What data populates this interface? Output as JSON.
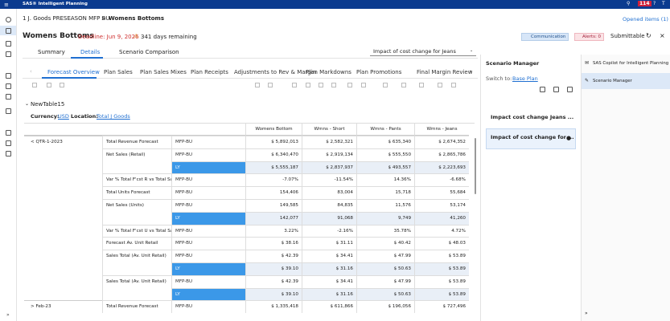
{
  "app": {
    "title": "SAS® Intelligent Planning",
    "notification_count": "114"
  },
  "breadcrumb": {
    "parent": "1 J. Goods PRESEASON MFP BU",
    "current": "Womens Bottoms"
  },
  "opened_items": "Opened items (1)",
  "header": {
    "title": "Womens Bottoms",
    "deadline": "Deadline: Jun 9, 2026",
    "remaining": "341 days remaining",
    "communication": "Communication",
    "alerts": "Alerts: 0",
    "status": "Submittable"
  },
  "tabs": [
    "Summary",
    "Details",
    "Scenario Comparison"
  ],
  "scenario_select": "Impact of cost change for Jeans",
  "subtabs": [
    "Forecast Overview",
    "Plan Sales",
    "Plan Sales Mixes",
    "Plan Receipts",
    "Adjustments to Rev & Margin",
    "Plan Markdowns",
    "Plan Promotions",
    "Final Margin Review"
  ],
  "table": {
    "name": "NewTable15",
    "currency_label": "Currency:",
    "currency": "USD",
    "location_label": "Location:",
    "location": "Total J Goods",
    "columns": [
      "Womens Bottom",
      "Wmns - Short",
      "Wmns - Pants",
      "Wmns - Jeans"
    ],
    "rows": [
      [
        "< QTR-1-2023",
        "Total Revenue Forecast",
        "MFP-BU",
        "$ 5,892,013",
        "$ 2,582,321",
        "$ 635,340",
        "$ 2,674,352"
      ],
      [
        null,
        "Net Sales (Retail)",
        "MFP-BU",
        "$ 6,340,470",
        "$ 2,919,134",
        "$ 555,550",
        "$ 2,865,786"
      ],
      [
        null,
        null,
        "LY",
        "$ 5,555,187",
        "$ 2,837,937",
        "$ 493,557",
        "$ 2,223,693"
      ],
      [
        null,
        "Var % Total F'cst R vs Total Sales R",
        "MFP-BU",
        "-7.07%",
        "-11.54%",
        "14.36%",
        "-6.68%"
      ],
      [
        null,
        "Total Units Forecast",
        "MFP-BU",
        "154,406",
        "83,004",
        "15,718",
        "55,684"
      ],
      [
        null,
        "Net Sales (Units)",
        "MFP-BU",
        "149,585",
        "84,835",
        "11,576",
        "53,174"
      ],
      [
        null,
        null,
        "LY",
        "142,077",
        "91,068",
        "9,749",
        "41,260"
      ],
      [
        null,
        "Var % Total F'cst U vs Total Sales U",
        "MFP-BU",
        "3.22%",
        "-2.16%",
        "35.78%",
        "4.72%"
      ],
      [
        null,
        "Forecast Av. Unit Retail",
        "MFP-BU",
        "$ 38.16",
        "$ 31.11",
        "$ 40.42",
        "$ 48.03"
      ],
      [
        null,
        "Sales Total (Av. Unit Retail)",
        "MFP-BU",
        "$ 42.39",
        "$ 34.41",
        "$ 47.99",
        "$ 53.89"
      ],
      [
        null,
        null,
        "LY",
        "$ 39.10",
        "$ 31.16",
        "$ 50.63",
        "$ 53.89"
      ],
      [
        null,
        "Sales Total (Av. Unit Retail)",
        "MFP-BU",
        "$ 42.39",
        "$ 34.41",
        "$ 47.99",
        "$ 53.89"
      ],
      [
        null,
        null,
        "LY",
        "$ 39.10",
        "$ 31.16",
        "$ 50.63",
        "$ 53.89"
      ],
      [
        "> Feb-23",
        "Total Revenue Forecast",
        "MFP-BU",
        "$ 1,335,418",
        "$ 611,866",
        "$ 196,056",
        "$ 727,496"
      ]
    ]
  },
  "scenario_manager": {
    "title": "Scenario Manager",
    "switch_label": "Switch to:",
    "switch_link": "Base Plan",
    "scenarios": [
      "Impact cost change Jeans ...",
      "Impact of cost change for ..."
    ]
  },
  "copilot": {
    "items": [
      "SAS Copilot for Intelligent Planning",
      "Scenario Manager"
    ]
  }
}
